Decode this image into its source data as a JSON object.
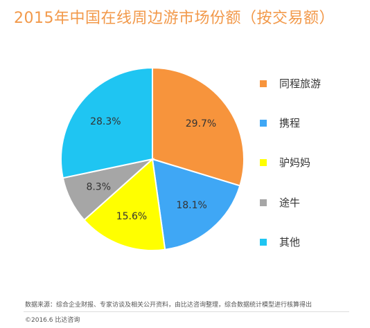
{
  "chart_data": {
    "type": "pie",
    "title": "2015年中国在线周边游市场份额（按交易额）",
    "slices": [
      {
        "name": "同程旅游",
        "value": 29.7,
        "label": "29.7%",
        "color": "#f7943c"
      },
      {
        "name": "携程",
        "value": 18.1,
        "label": "18.1%",
        "color": "#3fa7f5"
      },
      {
        "name": "驴妈妈",
        "value": 15.6,
        "label": "15.6%",
        "color": "#ffff00"
      },
      {
        "name": "途牛",
        "value": 8.3,
        "label": "8.3%",
        "color": "#a6a6a6"
      },
      {
        "name": "其他",
        "value": 28.3,
        "label": "28.3%",
        "color": "#1fc5f2"
      }
    ],
    "legend_position": "right"
  },
  "footer": {
    "source": "数据来源：综合企业财报、专家访谈及相关公开资料，由比达咨询整理，综合数据统计模型进行核算得出",
    "copyright": "©2016.6  比达咨询"
  }
}
